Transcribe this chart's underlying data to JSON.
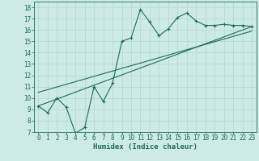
{
  "xlabel": "Humidex (Indice chaleur)",
  "bg_color": "#ceeae6",
  "line_color": "#1a6b5a",
  "grid_color": "#afd8d3",
  "zigzag_x": [
    0,
    1,
    2,
    3,
    4,
    5,
    6,
    7,
    8,
    9,
    10,
    11,
    12,
    13,
    14,
    15,
    16,
    17,
    18,
    19,
    20,
    21,
    22,
    23
  ],
  "zigzag_y": [
    9.3,
    8.7,
    10.0,
    9.2,
    6.9,
    7.4,
    11.0,
    9.7,
    11.3,
    15.0,
    15.3,
    17.8,
    16.7,
    15.5,
    16.1,
    17.1,
    17.5,
    16.8,
    16.4,
    16.4,
    16.5,
    16.4,
    16.4,
    16.3
  ],
  "line1_x": [
    0,
    23
  ],
  "line1_y": [
    9.3,
    16.3
  ],
  "line2_x": [
    0,
    23
  ],
  "line2_y": [
    10.5,
    15.9
  ],
  "xlim": [
    -0.5,
    23.5
  ],
  "ylim": [
    7,
    18.5
  ],
  "yticks": [
    7,
    8,
    9,
    10,
    11,
    12,
    13,
    14,
    15,
    16,
    17,
    18
  ],
  "xticks": [
    0,
    1,
    2,
    3,
    4,
    5,
    6,
    7,
    8,
    9,
    10,
    11,
    12,
    13,
    14,
    15,
    16,
    17,
    18,
    19,
    20,
    21,
    22,
    23
  ],
  "tick_fontsize": 5.5,
  "xlabel_fontsize": 6.5
}
